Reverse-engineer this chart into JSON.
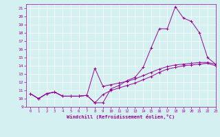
{
  "xlabel": "Windchill (Refroidissement éolien,°C)",
  "x_values": [
    0,
    1,
    2,
    3,
    4,
    5,
    6,
    7,
    8,
    9,
    10,
    11,
    12,
    13,
    14,
    15,
    16,
    17,
    18,
    19,
    20,
    21,
    22,
    23
  ],
  "line1": [
    10.6,
    10.0,
    10.6,
    10.8,
    10.3,
    10.3,
    10.3,
    10.4,
    9.5,
    9.5,
    11.2,
    11.6,
    12.2,
    12.6,
    13.8,
    16.2,
    18.5,
    18.5,
    21.2,
    19.8,
    19.4,
    18.0,
    15.0,
    14.2
  ],
  "line2": [
    10.6,
    10.0,
    10.6,
    10.8,
    10.3,
    10.3,
    10.3,
    10.4,
    13.7,
    11.5,
    11.7,
    11.9,
    12.1,
    12.4,
    12.8,
    13.2,
    13.6,
    13.9,
    14.1,
    14.2,
    14.3,
    14.4,
    14.4,
    14.2
  ],
  "line3": [
    10.6,
    10.0,
    10.6,
    10.8,
    10.3,
    10.3,
    10.3,
    10.4,
    9.5,
    10.5,
    11.0,
    11.3,
    11.6,
    11.9,
    12.3,
    12.7,
    13.2,
    13.6,
    13.8,
    14.0,
    14.1,
    14.2,
    14.3,
    14.0
  ],
  "line_color": "#990099",
  "bg_color": "#d4f0f0",
  "grid_color": "#ffffff",
  "ylim": [
    9,
    21.5
  ],
  "xlim": [
    -0.5,
    23
  ],
  "yticks": [
    9,
    10,
    11,
    12,
    13,
    14,
    15,
    16,
    17,
    18,
    19,
    20,
    21
  ],
  "xticks": [
    0,
    1,
    2,
    3,
    4,
    5,
    6,
    7,
    8,
    9,
    10,
    11,
    12,
    13,
    14,
    15,
    16,
    17,
    18,
    19,
    20,
    21,
    22,
    23
  ]
}
